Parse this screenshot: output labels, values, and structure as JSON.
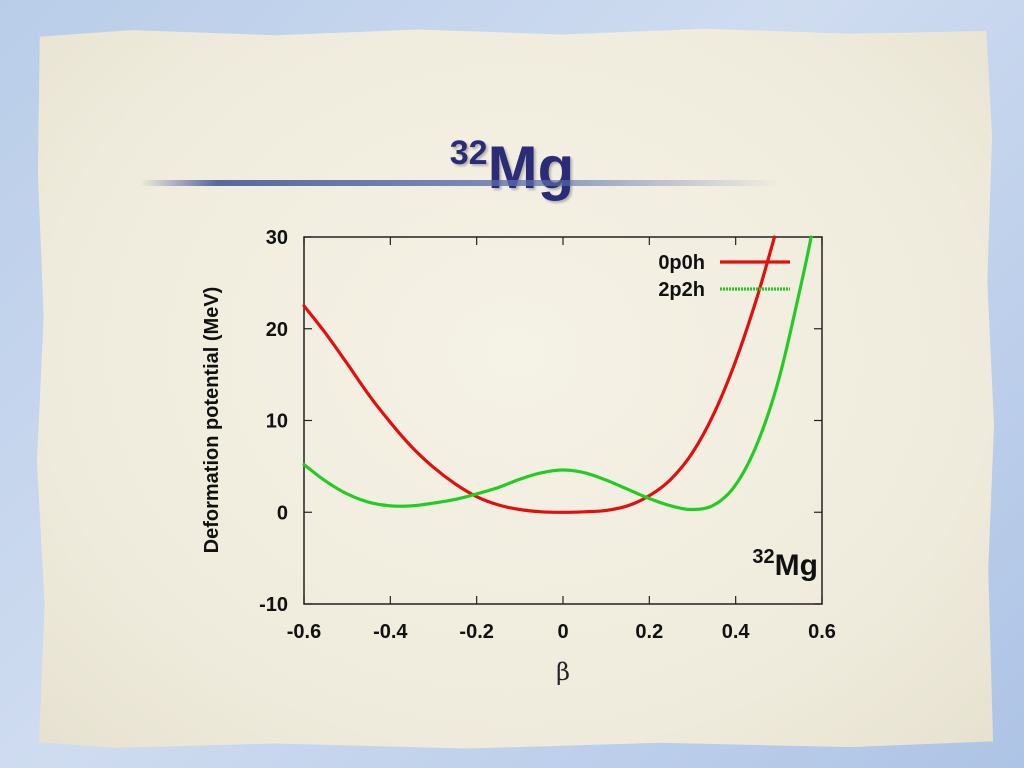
{
  "slide": {
    "title_mass": "32",
    "title_element": "Mg"
  },
  "chart_data": {
    "type": "line",
    "xlabel": "β",
    "ylabel": "Deformation potential (MeV)",
    "xlim": [
      -0.6,
      0.6
    ],
    "ylim": [
      -10,
      30
    ],
    "xticks": [
      "-0.6",
      "-0.4",
      "-0.2",
      "0",
      "0.2",
      "0.4",
      "0.6"
    ],
    "yticks": [
      "-10",
      "0",
      "10",
      "20",
      "30"
    ],
    "annotation": {
      "mass": "32",
      "element": "Mg"
    },
    "legend_position": "top-right",
    "series": [
      {
        "name": "0p0h",
        "color": "#e01010",
        "x": [
          -0.6,
          -0.55,
          -0.5,
          -0.45,
          -0.4,
          -0.35,
          -0.3,
          -0.25,
          -0.2,
          -0.15,
          -0.1,
          -0.05,
          0.0,
          0.05,
          0.1,
          0.15,
          0.2,
          0.25,
          0.3,
          0.35,
          0.4,
          0.45,
          0.49
        ],
        "y": [
          22.5,
          19.5,
          16.2,
          12.8,
          9.8,
          7.1,
          4.9,
          3.1,
          1.7,
          0.8,
          0.3,
          0.05,
          0.0,
          0.05,
          0.2,
          0.7,
          1.8,
          3.6,
          6.5,
          10.8,
          16.5,
          23.5,
          30.0
        ]
      },
      {
        "name": "2p2h",
        "color": "#22cc22",
        "x": [
          -0.6,
          -0.55,
          -0.5,
          -0.45,
          -0.4,
          -0.35,
          -0.3,
          -0.25,
          -0.2,
          -0.15,
          -0.1,
          -0.05,
          0.0,
          0.05,
          0.1,
          0.15,
          0.2,
          0.25,
          0.3,
          0.35,
          0.4,
          0.45,
          0.5,
          0.55,
          0.575
        ],
        "y": [
          5.2,
          3.4,
          2.0,
          1.1,
          0.7,
          0.7,
          1.0,
          1.4,
          2.0,
          2.7,
          3.6,
          4.3,
          4.6,
          4.3,
          3.5,
          2.5,
          1.5,
          0.7,
          0.3,
          0.8,
          3.0,
          7.5,
          14.5,
          24.5,
          30.0
        ]
      }
    ]
  }
}
